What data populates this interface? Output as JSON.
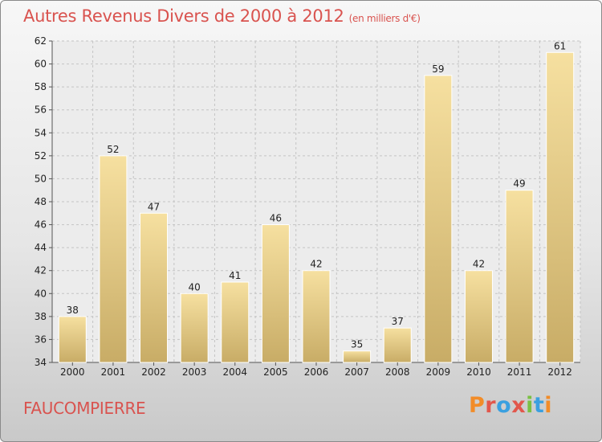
{
  "title": "Autres Revenus Divers de 2000 à 2012",
  "unit": "(en milliers d'€)",
  "place": "FAUCOMPIERRE",
  "logo": {
    "letters": [
      "P",
      "r",
      "o",
      "x",
      "i",
      "t",
      "i"
    ],
    "colors": [
      "#f28c28",
      "#e2574c",
      "#3aa0e0",
      "#e2574c",
      "#7ac143",
      "#3aa0e0",
      "#f28c28"
    ]
  },
  "colors": {
    "title": "#d9534f",
    "bar_light": "#f6e0a0",
    "bar_dark": "#c8ac66"
  },
  "chart_data": {
    "type": "bar",
    "categories": [
      "2000",
      "2001",
      "2002",
      "2003",
      "2004",
      "2005",
      "2006",
      "2007",
      "2008",
      "2009",
      "2010",
      "2011",
      "2012"
    ],
    "values": [
      38,
      52,
      47,
      40,
      41,
      46,
      42,
      35,
      37,
      59,
      42,
      49,
      61
    ],
    "ylim": [
      34,
      62
    ],
    "yticks": [
      34,
      36,
      38,
      40,
      42,
      44,
      46,
      48,
      50,
      52,
      54,
      56,
      58,
      60,
      62
    ],
    "grid": true
  }
}
